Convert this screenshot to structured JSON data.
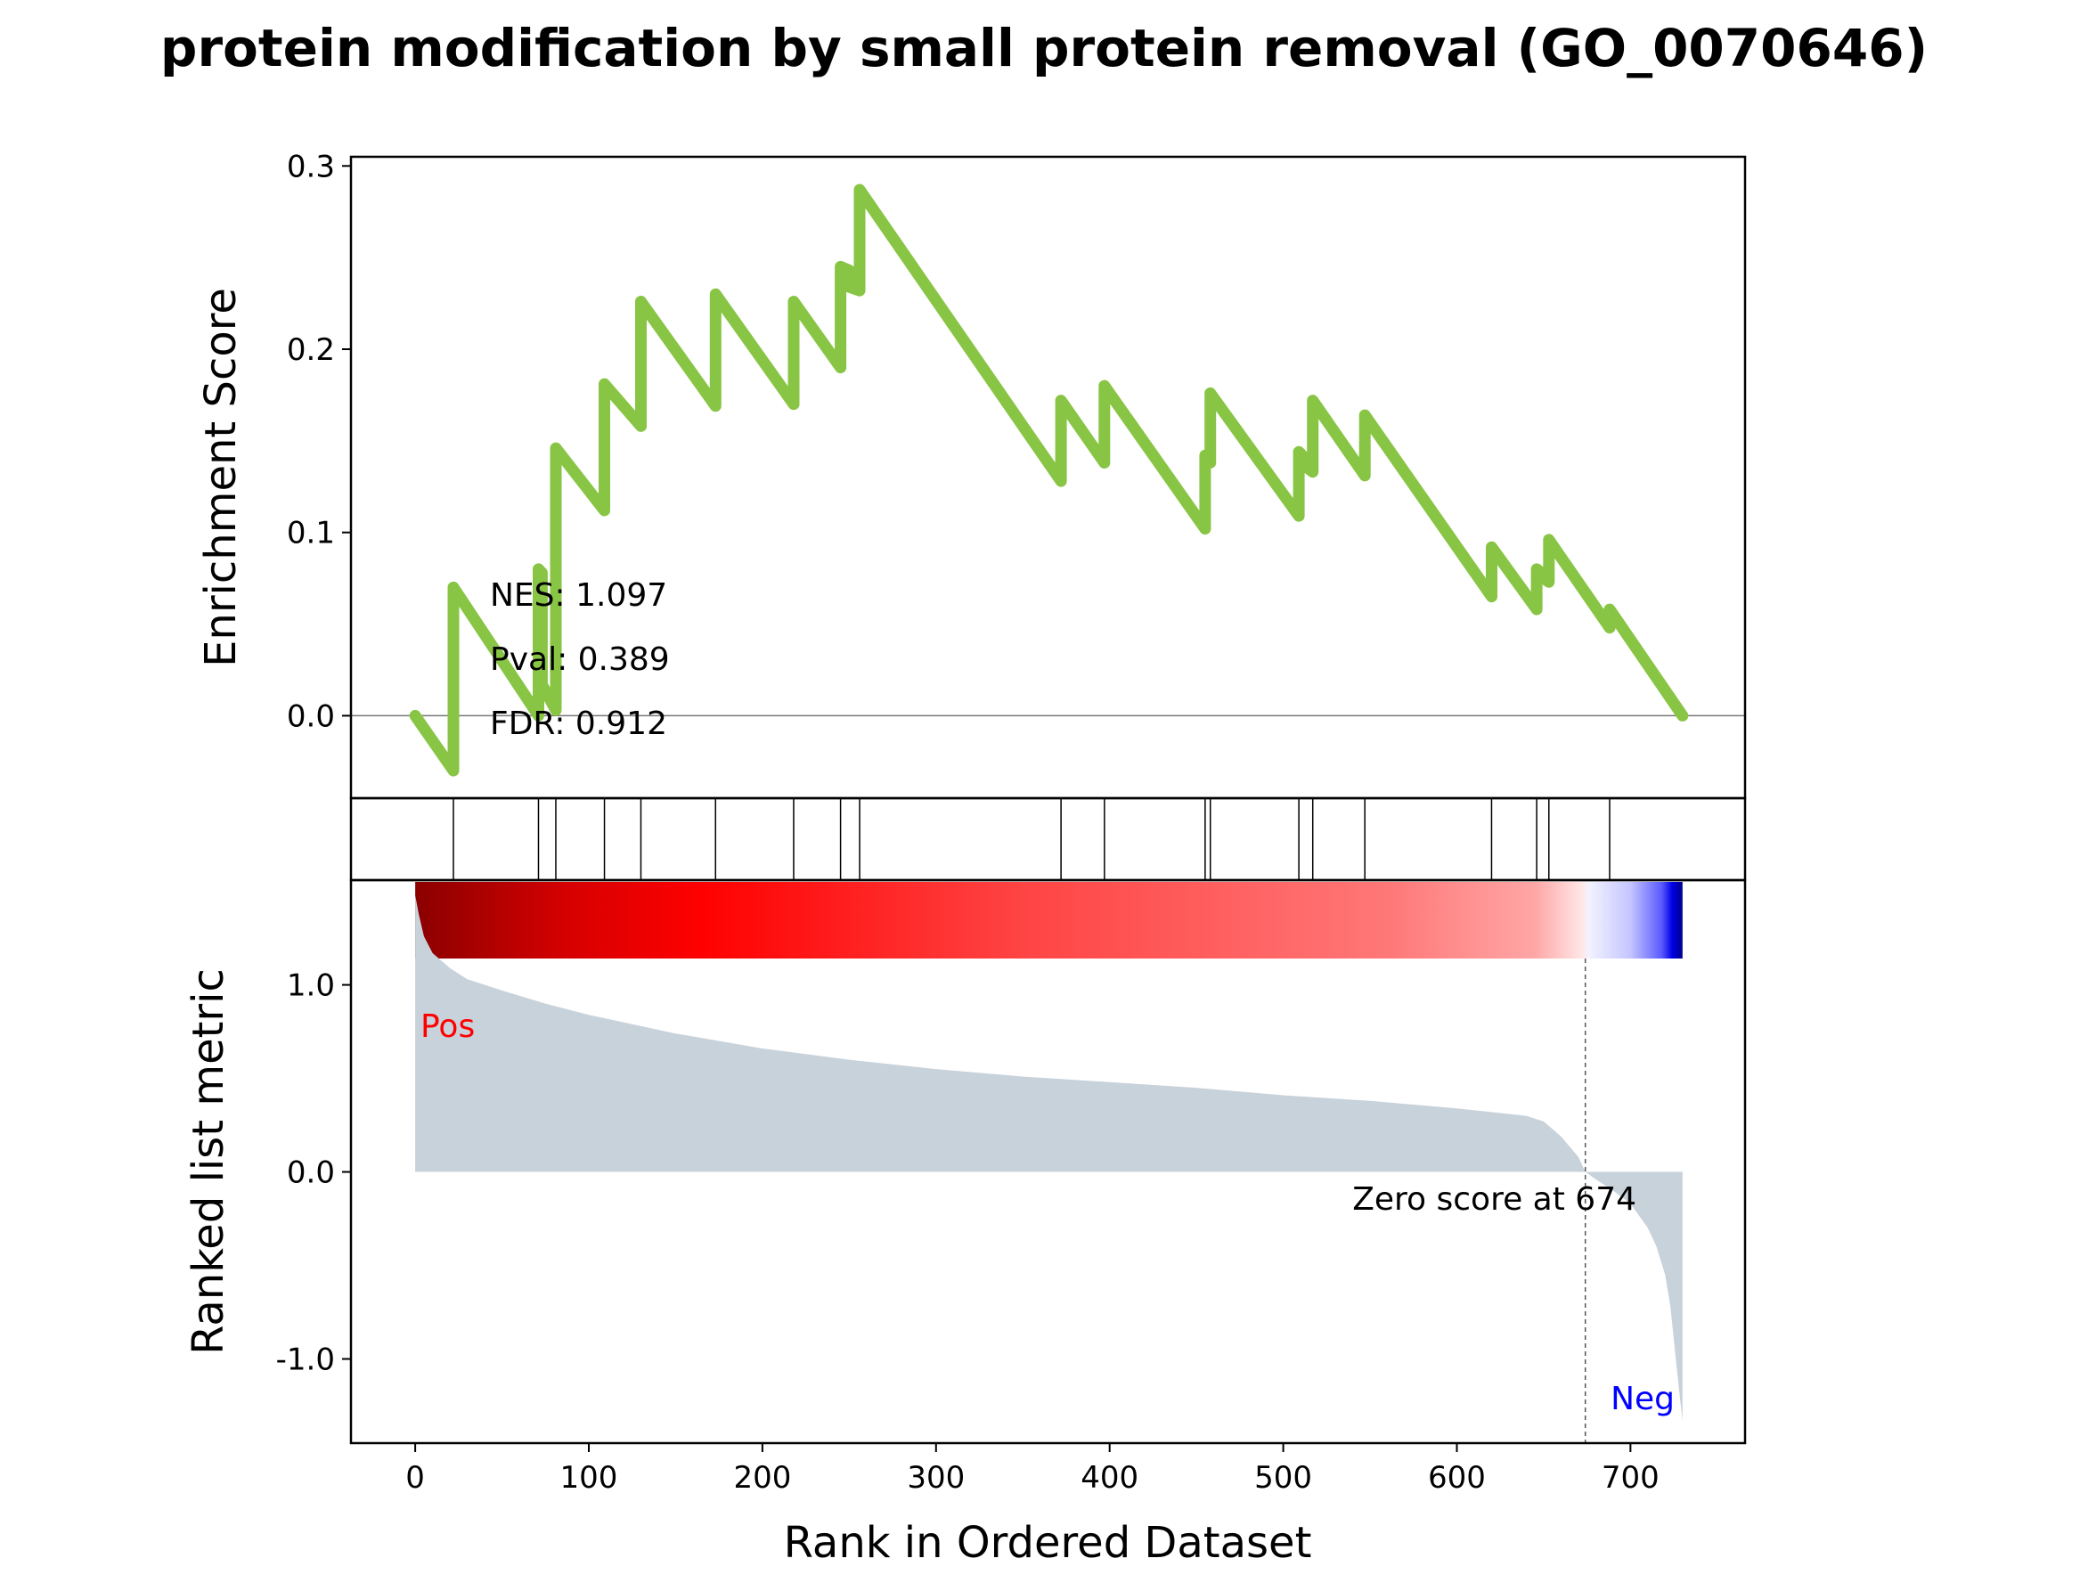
{
  "title": "protein modification by small protein removal (GO_0070646)",
  "chart_data": {
    "type": "line",
    "xlabel": "Rank in Ordered Dataset",
    "xlim": [
      -37,
      766
    ],
    "xticks": [
      0,
      100,
      200,
      300,
      400,
      500,
      600,
      700
    ],
    "panels": {
      "enrichment": {
        "ylabel": "Enrichment Score",
        "ylim": [
          -0.045,
          0.305
        ],
        "yticks": [
          "0.0",
          "0.1",
          "0.2",
          "0.3"
        ],
        "ytick_values": [
          0.0,
          0.1,
          0.2,
          0.3
        ],
        "line_color": "#88c544",
        "zero_line": true,
        "stats": {
          "nes": "NES: 1.097",
          "pval": "Pval: 0.389",
          "fdr": "FDR: 0.912"
        },
        "series": {
          "x": [
            0,
            22,
            22,
            71,
            71,
            73,
            73,
            81,
            81,
            109,
            109,
            130,
            130,
            173,
            173,
            218,
            218,
            245,
            245,
            250,
            250,
            256,
            256,
            372,
            372,
            397,
            397,
            455,
            455,
            458,
            458,
            509,
            509,
            513,
            513,
            517,
            517,
            547,
            547,
            620,
            620,
            646,
            646,
            650,
            650,
            653,
            653,
            688,
            688,
            730
          ],
          "y": [
            0.0,
            -0.03,
            0.07,
            0.0,
            0.08,
            0.078,
            0.017,
            0.003,
            0.146,
            0.112,
            0.181,
            0.158,
            0.226,
            0.169,
            0.23,
            0.17,
            0.226,
            0.19,
            0.245,
            0.243,
            0.234,
            0.232,
            0.287,
            0.128,
            0.172,
            0.138,
            0.18,
            0.102,
            0.142,
            0.138,
            0.176,
            0.109,
            0.144,
            0.14,
            0.136,
            0.133,
            0.172,
            0.131,
            0.164,
            0.065,
            0.092,
            0.058,
            0.08,
            0.077,
            0.075,
            0.073,
            0.096,
            0.048,
            0.058,
            0.0
          ]
        }
      },
      "hits": {
        "positions": [
          22,
          71,
          81,
          109,
          130,
          173,
          218,
          245,
          256,
          372,
          397,
          455,
          458,
          509,
          517,
          547,
          620,
          646,
          653,
          688
        ]
      },
      "ranked": {
        "ylabel": "Ranked list metric",
        "ylim": [
          -1.45,
          1.56
        ],
        "yticks": [
          "1.0",
          "0.0",
          "-1.0"
        ],
        "ytick_values": [
          1.0,
          0.0,
          -1.0
        ],
        "fill_color": "#c8d2db",
        "pos_label": "Pos",
        "neg_label": "Neg",
        "pos_color": "#ff0000",
        "neg_color": "#0000ff",
        "zero_cross_rank": 674,
        "zero_text": "Zero score at 674",
        "series": {
          "x": [
            0,
            2,
            5,
            10,
            20,
            30,
            50,
            75,
            100,
            150,
            200,
            250,
            300,
            350,
            400,
            450,
            500,
            550,
            600,
            640,
            650,
            660,
            670,
            673,
            674,
            680,
            690,
            700,
            710,
            715,
            720,
            723,
            725,
            727,
            729,
            730
          ],
          "y": [
            1.48,
            1.38,
            1.26,
            1.17,
            1.09,
            1.03,
            0.97,
            0.9,
            0.84,
            0.74,
            0.66,
            0.6,
            0.55,
            0.51,
            0.48,
            0.45,
            0.41,
            0.38,
            0.34,
            0.3,
            0.27,
            0.19,
            0.08,
            0.02,
            0.0,
            -0.04,
            -0.1,
            -0.17,
            -0.3,
            -0.4,
            -0.55,
            -0.72,
            -0.9,
            -1.08,
            -1.25,
            -1.33
          ]
        },
        "colorbar": {
          "stops": [
            {
              "rank": 0,
              "color": "#8b0000"
            },
            {
              "rank": 85,
              "color": "#d40000"
            },
            {
              "rank": 165,
              "color": "#ff0000"
            },
            {
              "rank": 350,
              "color": "#ff4444"
            },
            {
              "rank": 560,
              "color": "#ff7777"
            },
            {
              "rank": 645,
              "color": "#ffa6a6"
            },
            {
              "rank": 672,
              "color": "#ffe6e6"
            },
            {
              "rank": 676,
              "color": "#f2f2ff"
            },
            {
              "rank": 700,
              "color": "#c5c5ff"
            },
            {
              "rank": 718,
              "color": "#5a5aff"
            },
            {
              "rank": 724,
              "color": "#0000e6"
            },
            {
              "rank": 730,
              "color": "#00008b"
            }
          ]
        }
      }
    }
  }
}
